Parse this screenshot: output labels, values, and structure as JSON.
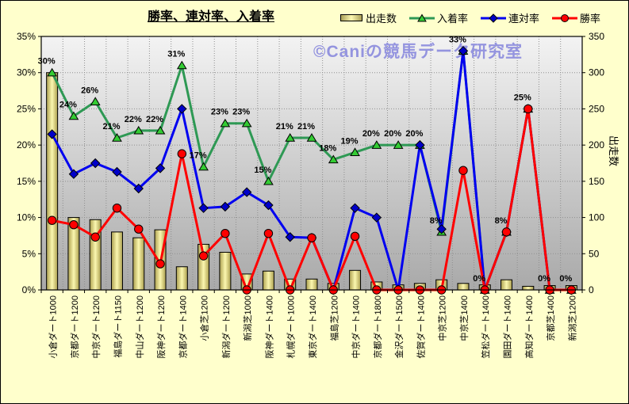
{
  "title": "勝率、連対率、入着率",
  "watermark": "©Caniの競馬データ研究室",
  "chart_data": {
    "type": "combo-bar-line",
    "title": "勝率、連対率、入着率",
    "legend_position": "top",
    "grid": true,
    "categories": [
      "小倉ダート1000",
      "京都ダート1200",
      "中京ダート1200",
      "福島ダート1150",
      "中山ダート1200",
      "阪神ダート1200",
      "京都ダート1400",
      "小倉芝1200",
      "新潟ダート1200",
      "新潟芝1000",
      "阪神ダート1400",
      "札幌ダート1000",
      "東京ダート1400",
      "福島芝1200",
      "中京ダート1400",
      "京都ダート1800",
      "金沢ダート1500",
      "佐賀ダート1400",
      "中京芝1200",
      "中京芝1400",
      "笠松ダート1400",
      "園田ダート1400",
      "高知ダート1400",
      "京都芝1400",
      "新潟芝1200"
    ],
    "left_axis": {
      "min": 0,
      "max": 35,
      "step": 5,
      "ticks": [
        "0%",
        "5%",
        "10%",
        "15%",
        "20%",
        "25%",
        "30%",
        "35%"
      ]
    },
    "right_axis": {
      "min": 0,
      "max": 350,
      "step": 50,
      "ticks": [
        "0",
        "50",
        "100",
        "150",
        "200",
        "250",
        "300",
        "350"
      ],
      "title": "出走数"
    },
    "series": [
      {
        "name": "出走数",
        "type": "bar",
        "axis": "right",
        "color_edge": "#A79D54",
        "color_center": "#FBF7B0",
        "values": [
          300,
          100,
          97,
          80,
          72,
          83,
          32,
          63,
          52,
          22,
          26,
          15,
          15,
          9,
          27,
          11,
          7,
          9,
          14,
          9,
          7,
          14,
          5,
          6,
          6
        ]
      },
      {
        "name": "入着率",
        "type": "line",
        "axis": "left",
        "marker": "triangle",
        "line_color": "#2E9954",
        "marker_color": "#33CC33",
        "values": [
          30,
          24,
          26,
          21,
          22,
          22,
          31,
          17,
          23,
          23,
          15,
          21,
          21,
          18,
          19,
          20,
          20,
          20,
          8,
          33,
          0,
          8,
          25,
          0,
          0
        ],
        "labels": [
          "30%",
          "24%",
          "26%",
          "21%",
          "22%",
          "22%",
          "31%",
          "17%",
          "23%",
          "23%",
          "15%",
          "21%",
          "21%",
          "18%",
          "19%",
          "20%",
          "20%",
          "20%",
          "8%",
          "33%",
          "0%",
          "8%",
          "25%",
          "0%",
          "0%"
        ]
      },
      {
        "name": "連対率",
        "type": "line",
        "axis": "left",
        "marker": "diamond",
        "line_color": "#0000F0",
        "marker_color": "#0000C8",
        "values": [
          21.5,
          16,
          17.5,
          16.3,
          14,
          16.8,
          25,
          11.3,
          11.5,
          13.5,
          11.7,
          7.3,
          7.2,
          0,
          11.3,
          10,
          0,
          20,
          8.4,
          33,
          0,
          8,
          25,
          0,
          0
        ]
      },
      {
        "name": "勝率",
        "type": "line",
        "axis": "left",
        "marker": "circle",
        "line_color": "#FF0000",
        "marker_color": "#FF0000",
        "values": [
          9.6,
          9,
          7.3,
          11.3,
          8.4,
          3.6,
          18.8,
          4.7,
          7.8,
          0,
          7.8,
          0,
          7.2,
          0,
          7.4,
          0,
          0,
          0,
          0,
          16.5,
          0,
          8,
          25,
          0,
          0
        ]
      }
    ]
  },
  "colors": {
    "background": "#FFFFCC",
    "plot_top": "#F3F3F3",
    "plot_bottom": "#A9A9A9",
    "gridline": "#8F8F8F",
    "watermark": "#9494DF"
  }
}
